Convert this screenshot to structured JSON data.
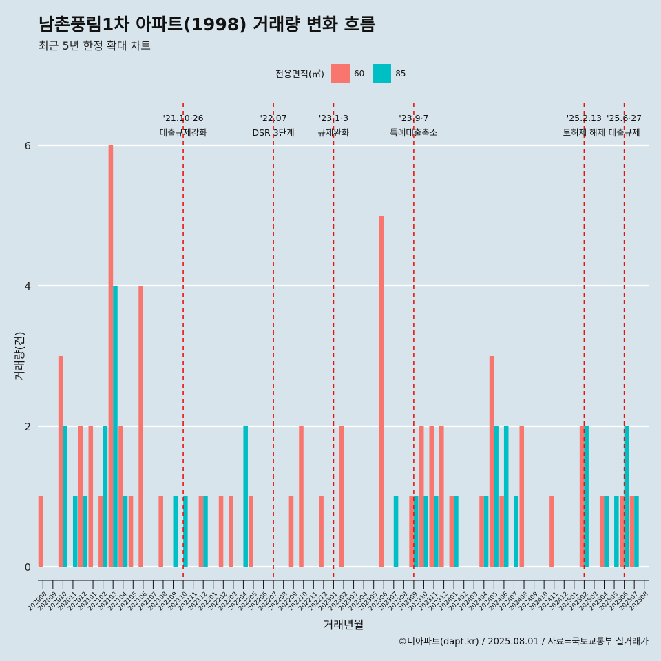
{
  "title": "남촌풍림1차 아파트(1998) 거래량 변화 흐름",
  "subtitle": "최근 5년 한정 확대 차트",
  "legend": {
    "title": "전용면적(㎡)",
    "items": [
      {
        "label": "60",
        "color": "#f8766d"
      },
      {
        "label": "85",
        "color": "#00bfc4"
      }
    ]
  },
  "caption": "©디아파트(dapt.kr) / 2025.08.01 / 자료=국토교통부 실거래가",
  "chart_data": {
    "type": "bar",
    "xlabel": "거래년월",
    "ylabel": "거래량(건)",
    "ylim": [
      0,
      6
    ],
    "yticks": [
      0,
      2,
      4,
      6
    ],
    "grid": true,
    "legend_position": "top",
    "categories": [
      "202008",
      "202009",
      "202010",
      "202011",
      "202012",
      "202101",
      "202102",
      "202103",
      "202104",
      "202105",
      "202106",
      "202107",
      "202108",
      "202109",
      "202110",
      "202111",
      "202112",
      "202201",
      "202202",
      "202203",
      "202204",
      "202205",
      "202206",
      "202207",
      "202208",
      "202209",
      "202210",
      "202211",
      "202212",
      "202301",
      "202302",
      "202303",
      "202304",
      "202305",
      "202306",
      "202307",
      "202308",
      "202309",
      "202310",
      "202311",
      "202312",
      "202401",
      "202402",
      "202403",
      "202404",
      "202405",
      "202406",
      "202407",
      "202408",
      "202409",
      "202410",
      "202411",
      "202412",
      "202501",
      "202502",
      "202503",
      "202504",
      "202505",
      "202506",
      "202507",
      "202508"
    ],
    "series": [
      {
        "name": "60",
        "color": "#f8766d",
        "values": [
          1,
          0,
          3,
          0,
          2,
          2,
          1,
          6,
          2,
          1,
          4,
          0,
          1,
          0,
          0,
          0,
          1,
          0,
          1,
          1,
          0,
          1,
          0,
          0,
          0,
          1,
          2,
          0,
          1,
          0,
          2,
          0,
          0,
          0,
          5,
          0,
          0,
          1,
          2,
          2,
          2,
          1,
          0,
          0,
          1,
          3,
          1,
          0,
          2,
          0,
          0,
          1,
          0,
          0,
          2,
          0,
          1,
          0,
          1,
          1,
          0
        ]
      },
      {
        "name": "85",
        "color": "#00bfc4",
        "values": [
          0,
          0,
          2,
          1,
          1,
          0,
          2,
          4,
          1,
          0,
          0,
          0,
          0,
          1,
          1,
          0,
          1,
          0,
          0,
          0,
          2,
          0,
          0,
          0,
          0,
          0,
          0,
          0,
          0,
          0,
          0,
          0,
          0,
          0,
          0,
          1,
          0,
          1,
          1,
          1,
          0,
          1,
          0,
          0,
          1,
          2,
          2,
          1,
          0,
          0,
          0,
          0,
          0,
          0,
          2,
          0,
          1,
          1,
          2,
          1,
          0
        ]
      }
    ],
    "annotations": [
      {
        "date": "202110",
        "line1": "'21.10·26",
        "line2": "대출규제강화"
      },
      {
        "date": "202207",
        "line1": "'22.07",
        "line2": "DSR 3단계"
      },
      {
        "date": "202301",
        "line1": "'23.1·3",
        "line2": "규제완화"
      },
      {
        "date": "202309",
        "line1": "'23.9·7",
        "line2": "특례대출축소"
      },
      {
        "date": "202502",
        "line1": "'25.2.13",
        "line2": "토허제 해제"
      },
      {
        "date": "202506",
        "line1": "'25.6·27",
        "line2": "대출규제"
      }
    ]
  }
}
